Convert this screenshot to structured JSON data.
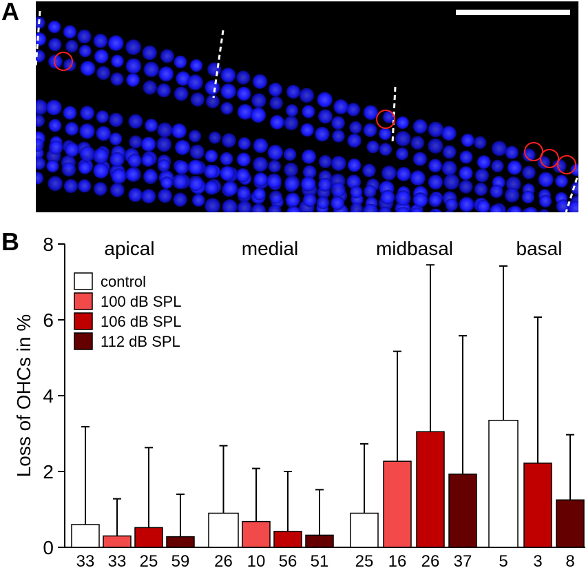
{
  "panels": {
    "a_label": "A",
    "b_label": "B"
  },
  "microscopy": {
    "background": "#000000",
    "nuclei_color": "#1a1aff",
    "marker_color": "#ff2020",
    "scale_bar_color": "#ffffff"
  },
  "chart_data": {
    "type": "bar",
    "ylabel": "Loss of OHCs in %",
    "ylim": [
      0,
      8
    ],
    "yticks": [
      0,
      2,
      4,
      6,
      8
    ],
    "groups": [
      "apical",
      "medial",
      "midbasal",
      "basal"
    ],
    "legend": [
      {
        "label": "control",
        "color": "#ffffff"
      },
      {
        "label": "100 dB SPL",
        "color": "#f24a4a"
      },
      {
        "label": "106 dB SPL",
        "color": "#c00000"
      },
      {
        "label": "112 dB SPL",
        "color": "#640000"
      }
    ],
    "bars": [
      {
        "group": "apical",
        "series": "control",
        "value": 0.6,
        "err": 3.18,
        "n": "33"
      },
      {
        "group": "apical",
        "series": "100 dB SPL",
        "value": 0.3,
        "err": 1.28,
        "n": "33"
      },
      {
        "group": "apical",
        "series": "106 dB SPL",
        "value": 0.52,
        "err": 2.63,
        "n": "25"
      },
      {
        "group": "apical",
        "series": "112 dB SPL",
        "value": 0.28,
        "err": 1.4,
        "n": "59"
      },
      {
        "group": "medial",
        "series": "control",
        "value": 0.9,
        "err": 2.68,
        "n": "26"
      },
      {
        "group": "medial",
        "series": "100 dB SPL",
        "value": 0.68,
        "err": 2.08,
        "n": "10"
      },
      {
        "group": "medial",
        "series": "106 dB SPL",
        "value": 0.42,
        "err": 2.0,
        "n": "56"
      },
      {
        "group": "medial",
        "series": "112 dB SPL",
        "value": 0.32,
        "err": 1.52,
        "n": "51"
      },
      {
        "group": "midbasal",
        "series": "control",
        "value": 0.9,
        "err": 2.73,
        "n": "25"
      },
      {
        "group": "midbasal",
        "series": "100 dB SPL",
        "value": 2.27,
        "err": 5.17,
        "n": "16"
      },
      {
        "group": "midbasal",
        "series": "106 dB SPL",
        "value": 3.05,
        "err": 7.45,
        "n": "26"
      },
      {
        "group": "midbasal",
        "series": "112 dB SPL",
        "value": 1.93,
        "err": 5.58,
        "n": "37"
      },
      {
        "group": "basal",
        "series": "control",
        "value": 3.35,
        "err": 7.42,
        "n": "5"
      },
      {
        "group": "basal",
        "series": "106 dB SPL",
        "value": 2.22,
        "err": 6.07,
        "n": "3"
      },
      {
        "group": "basal",
        "series": "112 dB SPL",
        "value": 1.25,
        "err": 2.97,
        "n": "8"
      }
    ]
  }
}
